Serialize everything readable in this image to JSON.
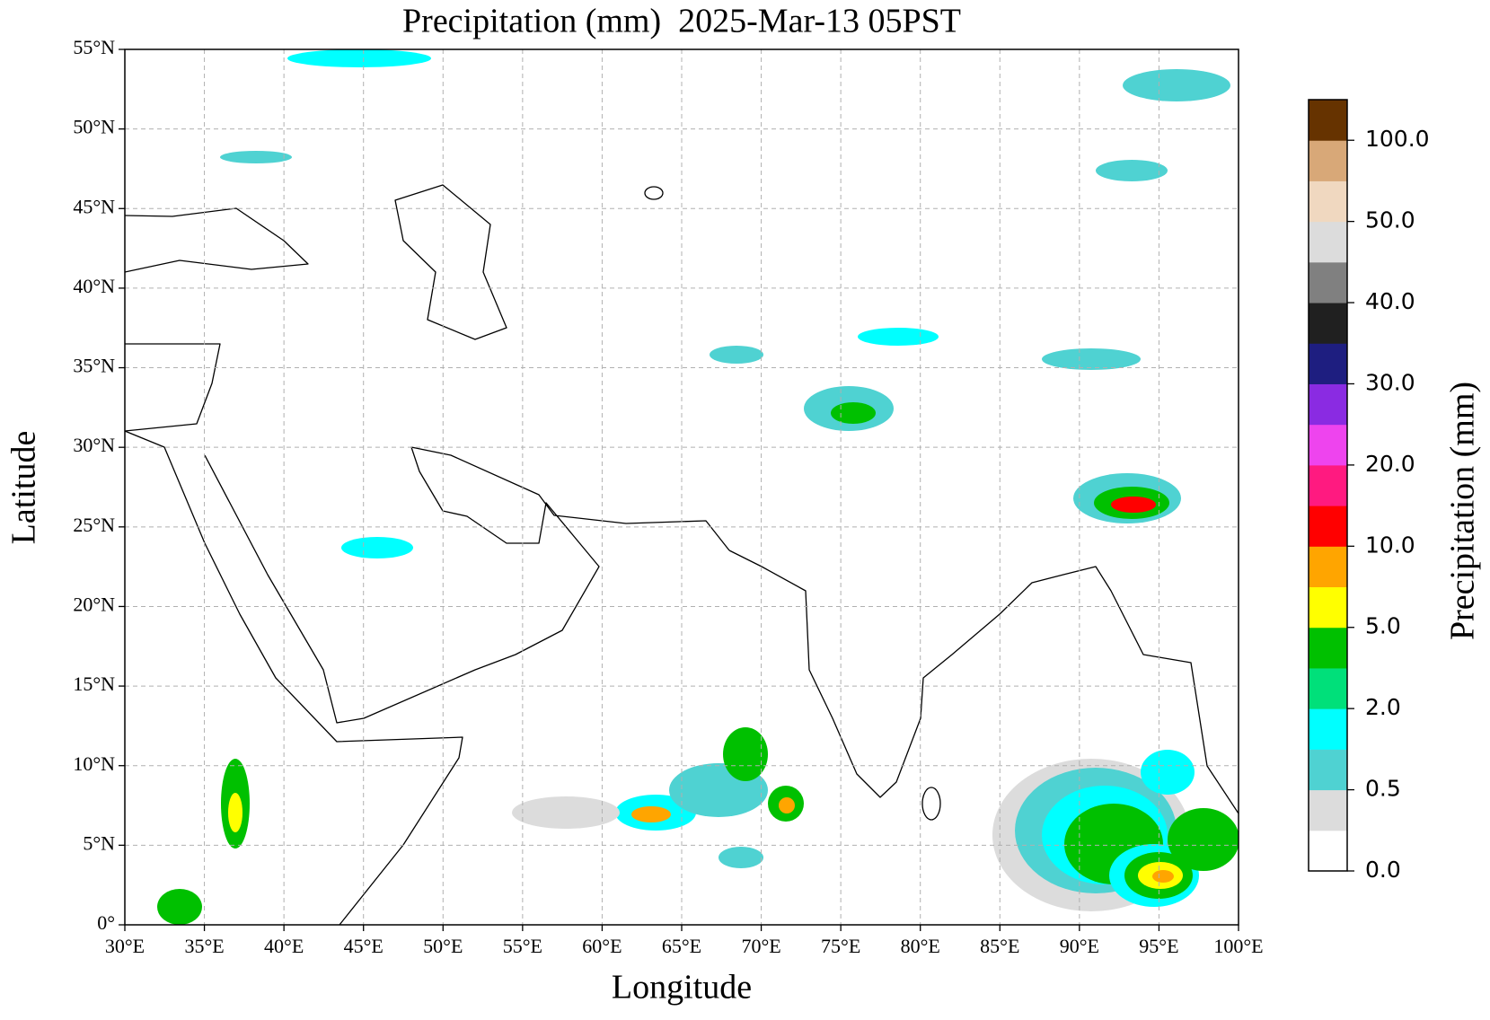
{
  "map": {
    "title": "Precipitation (mm)  2025-Mar-13 05PST",
    "xlabel": "Longitude",
    "ylabel": "Latitude",
    "xlim": [
      30,
      100
    ],
    "ylim": [
      0,
      55
    ],
    "xticks": [
      {
        "value": 30,
        "label": "30°E"
      },
      {
        "value": 35,
        "label": "35°E"
      },
      {
        "value": 40,
        "label": "40°E"
      },
      {
        "value": 45,
        "label": "45°E"
      },
      {
        "value": 50,
        "label": "50°E"
      },
      {
        "value": 55,
        "label": "55°E"
      },
      {
        "value": 60,
        "label": "60°E"
      },
      {
        "value": 65,
        "label": "65°E"
      },
      {
        "value": 70,
        "label": "70°E"
      },
      {
        "value": 75,
        "label": "75°E"
      },
      {
        "value": 80,
        "label": "80°E"
      },
      {
        "value": 85,
        "label": "85°E"
      },
      {
        "value": 90,
        "label": "90°E"
      },
      {
        "value": 95,
        "label": "95°E"
      },
      {
        "value": 100,
        "label": "100°E"
      }
    ],
    "yticks": [
      {
        "value": 0,
        "label": "0°"
      },
      {
        "value": 5,
        "label": "5°N"
      },
      {
        "value": 10,
        "label": "10°N"
      },
      {
        "value": 15,
        "label": "15°N"
      },
      {
        "value": 20,
        "label": "20°N"
      },
      {
        "value": 25,
        "label": "25°N"
      },
      {
        "value": 30,
        "label": "30°N"
      },
      {
        "value": 35,
        "label": "35°N"
      },
      {
        "value": 40,
        "label": "40°N"
      },
      {
        "value": 45,
        "label": "45°N"
      },
      {
        "value": 50,
        "label": "50°N"
      },
      {
        "value": 55,
        "label": "55°N"
      }
    ],
    "grid": true,
    "colorbar": {
      "label": "Precipitation (mm)",
      "colors": [
        "#ffffff",
        "#dcdcdc",
        "#4fd2d2",
        "#00ffff",
        "#00e07a",
        "#00c000",
        "#ffff00",
        "#ffa500",
        "#ff0000",
        "#ff1a80",
        "#ee44ee",
        "#8a2be2",
        "#1e1e80",
        "#202020",
        "#808080",
        "#dcdcdc",
        "#f0d8c0",
        "#d8a878",
        "#663300"
      ],
      "ticks": [
        {
          "value": 0,
          "label": "0.0"
        },
        {
          "value": 0.5,
          "label": "0.5"
        },
        {
          "value": 2,
          "label": "2.0"
        },
        {
          "value": 5,
          "label": "5.0"
        },
        {
          "value": 10,
          "label": "10.0"
        },
        {
          "value": 20,
          "label": "20.0"
        },
        {
          "value": 30,
          "label": "30.0"
        },
        {
          "value": 40,
          "label": "40.0"
        },
        {
          "value": 50,
          "label": "50.0"
        },
        {
          "value": 100,
          "label": "100.0"
        }
      ]
    }
  }
}
